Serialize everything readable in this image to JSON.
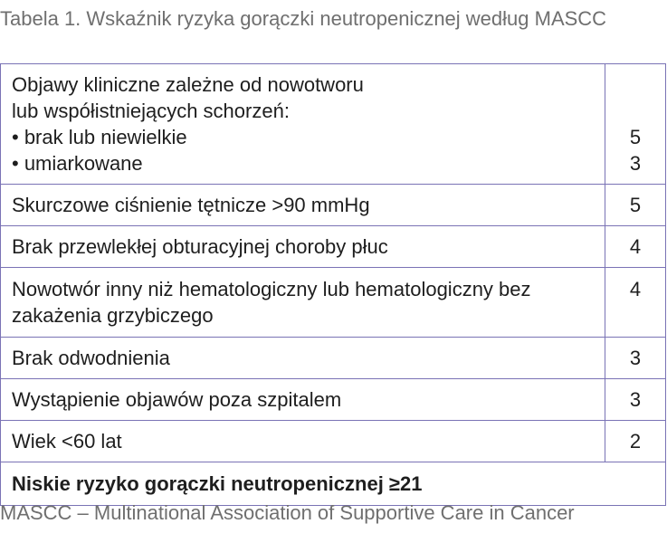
{
  "caption": "Tabela 1. Wskaźnik ryzyka gorączki neutropenicznej według MASCC",
  "rows": [
    {
      "label_lines": [
        "Objawy kliniczne zależne od nowotworu",
        "lub współistniejących schorzeń:",
        "• brak lub niewielkie",
        "• umiarkowane"
      ],
      "score_lines": [
        "",
        "",
        "5",
        "3"
      ]
    },
    {
      "label": "Skurczowe ciśnienie tętnicze >90 mmHg",
      "score": "5"
    },
    {
      "label": "Brak przewlekłej obturacyjnej choroby płuc",
      "score": "4"
    },
    {
      "label": "Nowotwór inny niż hematologiczny lub hematologiczny bez zakażenia grzybiczego",
      "score": "4"
    },
    {
      "label": "Brak odwodnienia",
      "score": "3"
    },
    {
      "label": "Wystąpienie objawów poza szpitalem",
      "score": "3"
    },
    {
      "label": "Wiek <60 lat",
      "score": "2"
    }
  ],
  "summary": "Niskie ryzyko gorączki neutropenicznej ≥21",
  "footnote": "MASCC – Multinational Association of Supportive Care in Cancer"
}
